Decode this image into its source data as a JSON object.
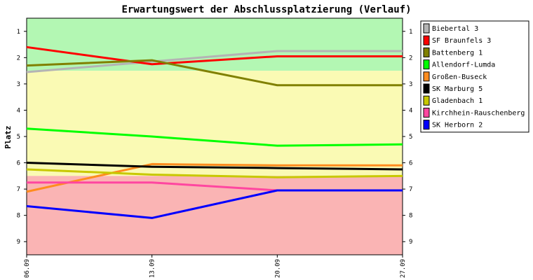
{
  "chart_data": {
    "type": "line",
    "title": "Erwartungswert der Abschlussplatzierung (Verlauf)",
    "ylabel": "Platz",
    "xlabel": "",
    "categories": [
      "06.09",
      "13.09",
      "20.09",
      "27.09"
    ],
    "ylim": [
      9.5,
      0.5
    ],
    "y_ticks": [
      1,
      2,
      3,
      4,
      5,
      6,
      7,
      8,
      9
    ],
    "grid": false,
    "legend_position": "right",
    "bands": [
      {
        "from": 0.5,
        "to": 2.5,
        "color": "#b3f7b3"
      },
      {
        "from": 2.5,
        "to": 6.5,
        "color": "#fafab4"
      },
      {
        "from": 6.5,
        "to": 9.5,
        "color": "#fab4b4"
      }
    ],
    "series": [
      {
        "name": "Biebertal 3",
        "color": "#b4b4b4",
        "values": [
          2.55,
          2.15,
          1.75,
          1.75
        ]
      },
      {
        "name": "SF Braunfels 3",
        "color": "#ff0000",
        "values": [
          1.6,
          2.25,
          1.95,
          1.95
        ]
      },
      {
        "name": "Battenberg 1",
        "color": "#808000",
        "values": [
          2.3,
          2.1,
          3.05,
          3.05
        ]
      },
      {
        "name": "Allendorf-Lumda",
        "color": "#00ff00",
        "values": [
          4.7,
          5.0,
          5.35,
          5.3
        ]
      },
      {
        "name": "Großen-Buseck",
        "color": "#ff8c1e",
        "values": [
          7.1,
          6.05,
          6.1,
          6.1
        ]
      },
      {
        "name": "SK Marburg 5",
        "color": "#000000",
        "values": [
          6.0,
          6.15,
          6.2,
          6.25
        ]
      },
      {
        "name": "Gladenbach 1",
        "color": "#c8c800",
        "values": [
          6.25,
          6.45,
          6.55,
          6.5
        ]
      },
      {
        "name": "Kirchhein-Rauschenberg",
        "color": "#ff46a0",
        "values": [
          6.75,
          6.75,
          7.05,
          7.05
        ]
      },
      {
        "name": "SK Herborn 2",
        "color": "#0000ff",
        "values": [
          7.65,
          8.1,
          7.05,
          7.05
        ]
      }
    ]
  }
}
